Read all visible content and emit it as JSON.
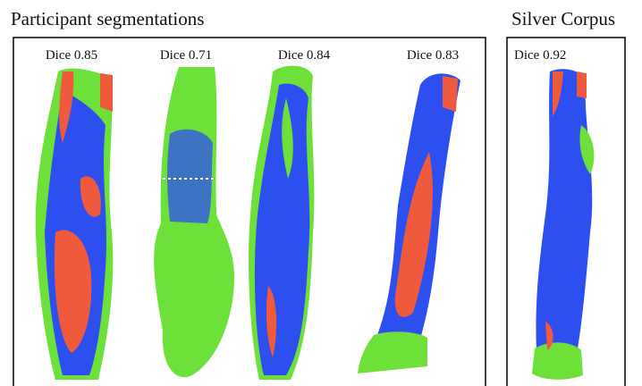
{
  "panels": [
    {
      "title": "Participant segmentations",
      "labels": [
        "Dice 0.85",
        "Dice 0.71",
        "Dice 0.84",
        "Dice 0.83"
      ]
    },
    {
      "title": "Silver Corpus",
      "labels": [
        "Dice 0.92"
      ]
    }
  ]
}
